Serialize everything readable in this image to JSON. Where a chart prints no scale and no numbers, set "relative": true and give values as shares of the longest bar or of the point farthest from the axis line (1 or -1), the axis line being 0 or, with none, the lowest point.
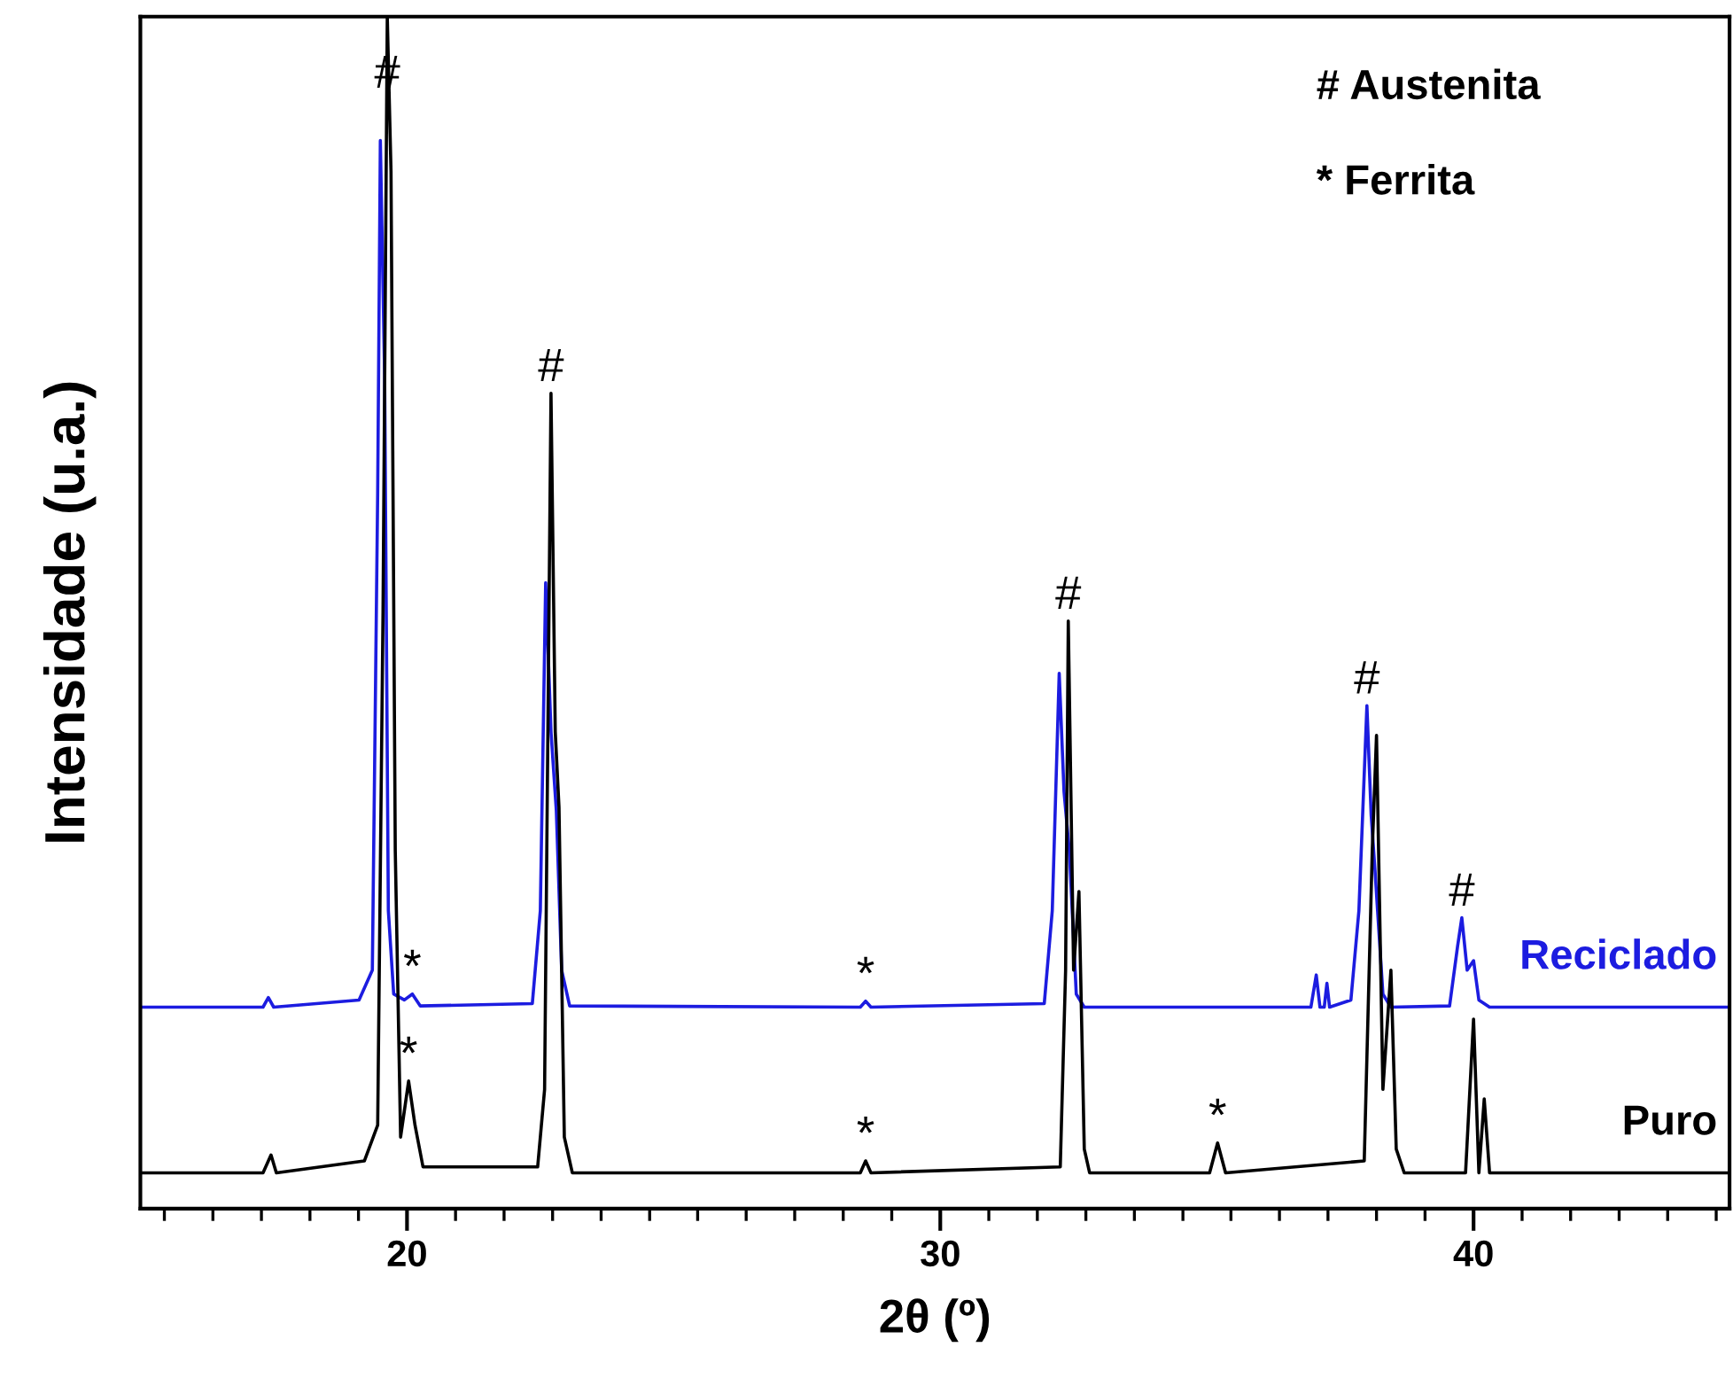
{
  "chart_data": {
    "type": "line",
    "relative": true,
    "xlabel": "2θ (º)",
    "ylabel": "Intensidade (u.a.)",
    "xlim": [
      15.0,
      44.8
    ],
    "xticks": [
      {
        "value": 15.45,
        "label": null
      },
      {
        "value": 16.36,
        "label": null
      },
      {
        "value": 17.27,
        "label": null
      },
      {
        "value": 18.18,
        "label": null
      },
      {
        "value": 19.09,
        "label": null
      },
      20,
      {
        "value": 20.91,
        "label": null
      },
      {
        "value": 21.82,
        "label": null
      },
      {
        "value": 22.73,
        "label": null
      },
      {
        "value": 23.64,
        "label": null
      },
      {
        "value": 24.55,
        "label": null
      },
      {
        "value": 25.45,
        "label": null
      },
      {
        "value": 26.36,
        "label": null
      },
      {
        "value": 27.27,
        "label": null
      },
      {
        "value": 28.18,
        "label": null
      },
      {
        "value": 29.09,
        "label": null
      },
      30,
      {
        "value": 30.91,
        "label": null
      },
      {
        "value": 31.82,
        "label": null
      },
      {
        "value": 32.73,
        "label": null
      },
      {
        "value": 33.64,
        "label": null
      },
      {
        "value": 34.55,
        "label": null
      },
      {
        "value": 35.45,
        "label": null
      },
      {
        "value": 36.36,
        "label": null
      },
      {
        "value": 37.27,
        "label": null
      },
      {
        "value": 38.18,
        "label": null
      },
      {
        "value": 39.09,
        "label": null
      },
      40,
      {
        "value": 40.91,
        "label": null
      },
      {
        "value": 41.82,
        "label": null
      },
      {
        "value": 42.73,
        "label": null
      },
      {
        "value": 43.64,
        "label": null
      },
      {
        "value": 44.55,
        "label": null
      }
    ],
    "legend": false,
    "grid": false,
    "marker": "none",
    "line_style": "solid",
    "series": [
      {
        "name": "Reciclado",
        "color": "#1c1ce0",
        "x": [
          15.0,
          17.3,
          17.4,
          17.5,
          19.1,
          19.35,
          19.45,
          19.5,
          19.58,
          19.65,
          19.75,
          19.95,
          20.1,
          20.25,
          22.35,
          22.5,
          22.6,
          22.7,
          22.8,
          22.9,
          23.05,
          28.5,
          28.6,
          28.7,
          31.95,
          32.1,
          32.23,
          32.32,
          32.42,
          32.55,
          32.7,
          36.95,
          37.05,
          37.12,
          37.2,
          37.25,
          37.3,
          37.7,
          37.85,
          38.0,
          38.08,
          38.15,
          38.3,
          38.45,
          39.55,
          39.7,
          39.78,
          39.88,
          40.0,
          40.1,
          40.3,
          44.8
        ],
        "values": [
          0.169,
          0.169,
          0.177,
          0.169,
          0.175,
          0.2,
          0.6,
          0.896,
          0.7,
          0.25,
          0.18,
          0.175,
          0.18,
          0.17,
          0.172,
          0.25,
          0.525,
          0.4,
          0.334,
          0.2,
          0.17,
          0.169,
          0.174,
          0.169,
          0.172,
          0.25,
          0.449,
          0.35,
          0.3,
          0.18,
          0.169,
          0.169,
          0.196,
          0.169,
          0.169,
          0.189,
          0.169,
          0.175,
          0.25,
          0.422,
          0.33,
          0.285,
          0.18,
          0.169,
          0.17,
          0.22,
          0.244,
          0.2,
          0.208,
          0.175,
          0.169,
          0.169
        ]
      },
      {
        "name": "Puro",
        "color": "#000000",
        "x": [
          15.0,
          17.3,
          17.45,
          17.55,
          19.2,
          19.45,
          19.55,
          19.63,
          19.7,
          19.78,
          19.88,
          20.03,
          20.15,
          20.3,
          22.45,
          22.58,
          22.7,
          22.78,
          22.85,
          22.95,
          23.1,
          28.5,
          28.6,
          28.7,
          32.25,
          32.35,
          32.4,
          32.5,
          32.6,
          32.7,
          32.8,
          35.05,
          35.2,
          35.35,
          37.95,
          38.1,
          38.18,
          38.3,
          38.45,
          38.55,
          38.7,
          39.85,
          40.0,
          40.1,
          40.2,
          40.3,
          44.8
        ],
        "values": [
          0.03,
          0.03,
          0.045,
          0.03,
          0.04,
          0.07,
          0.5,
          1.0,
          0.87,
          0.3,
          0.06,
          0.107,
          0.07,
          0.035,
          0.035,
          0.1,
          0.684,
          0.4,
          0.337,
          0.06,
          0.03,
          0.03,
          0.04,
          0.03,
          0.035,
          0.2,
          0.493,
          0.2,
          0.266,
          0.05,
          0.03,
          0.03,
          0.055,
          0.03,
          0.04,
          0.3,
          0.397,
          0.1,
          0.2,
          0.05,
          0.03,
          0.03,
          0.159,
          0.03,
          0.092,
          0.03,
          0.03
        ]
      }
    ],
    "annotations": [
      "# Austenita",
      "* Ferrita",
      {
        "text": "#",
        "x": 19.63,
        "y": 1.0
      },
      {
        "text": "#",
        "x": 22.7,
        "y": 0.684
      },
      {
        "text": "#",
        "x": 32.4,
        "y": 0.493
      },
      {
        "text": "#",
        "x": 38.0,
        "y": 0.422
      },
      {
        "text": "#",
        "x": 39.78,
        "y": 0.244
      },
      {
        "text": "*",
        "x": 20.1,
        "y": 0.18
      },
      {
        "text": "*",
        "x": 20.03,
        "y": 0.107
      },
      {
        "text": "*",
        "x": 28.6,
        "y": 0.174
      },
      {
        "text": "*",
        "x": 28.6,
        "y": 0.04
      },
      {
        "text": "*",
        "x": 35.2,
        "y": 0.055
      }
    ]
  }
}
